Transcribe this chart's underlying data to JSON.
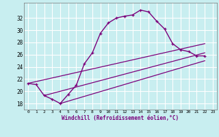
{
  "xlabel": "Windchill (Refroidissement éolien,°C)",
  "background_color": "#c8eef0",
  "grid_color": "#ffffff",
  "line_color": "#7b007b",
  "xlim": [
    -0.5,
    23.5
  ],
  "ylim": [
    17.0,
    34.5
  ],
  "yticks": [
    18,
    20,
    22,
    24,
    26,
    28,
    30,
    32
  ],
  "xticks": [
    0,
    1,
    2,
    3,
    4,
    5,
    6,
    7,
    8,
    9,
    10,
    11,
    12,
    13,
    14,
    15,
    16,
    17,
    18,
    19,
    20,
    21,
    22,
    23
  ],
  "xtick_labels": [
    "0",
    "1",
    "2",
    "3",
    "4",
    "5",
    "6",
    "7",
    "8",
    "9",
    "10",
    "11",
    "12",
    "13",
    "14",
    "15",
    "16",
    "17",
    "18",
    "19",
    "20",
    "21",
    "22",
    "23"
  ],
  "curve1_x": [
    0,
    1,
    2,
    3,
    4,
    5,
    6,
    7,
    8,
    9,
    10,
    11,
    12,
    13,
    14,
    15,
    16,
    17,
    18,
    19,
    20,
    21,
    22
  ],
  "curve1_y": [
    21.3,
    21.1,
    19.3,
    18.7,
    18.0,
    19.5,
    21.0,
    24.5,
    26.3,
    29.5,
    31.2,
    32.0,
    32.3,
    32.5,
    33.3,
    33.0,
    31.5,
    30.2,
    27.8,
    26.8,
    26.5,
    25.8,
    25.8
  ],
  "line1_x": [
    0,
    22
  ],
  "line1_y": [
    21.3,
    27.8
  ],
  "line2_x": [
    2,
    22
  ],
  "line2_y": [
    19.3,
    26.3
  ],
  "line3_x": [
    4,
    22
  ],
  "line3_y": [
    18.0,
    25.0
  ]
}
